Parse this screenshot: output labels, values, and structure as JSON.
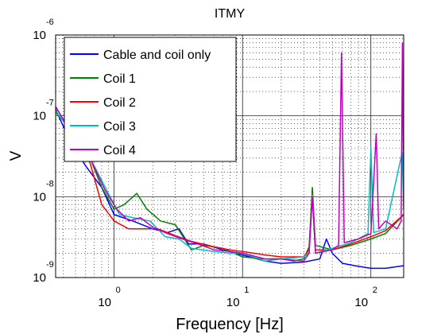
{
  "chart_data": {
    "type": "line",
    "title": "ITMY",
    "xlabel": "Frequency [Hz]",
    "ylabel": "V",
    "xscale": "log",
    "yscale": "log",
    "xlim": [
      0.35,
      180
    ],
    "ylim": [
      1e-09,
      1e-06
    ],
    "grid": true,
    "legend_position": "top-left",
    "x_ticks": [
      {
        "value": 1,
        "base": "10",
        "exp": "0"
      },
      {
        "value": 10,
        "base": "10",
        "exp": "1"
      },
      {
        "value": 100,
        "base": "10",
        "exp": "2"
      }
    ],
    "y_ticks": [
      {
        "value": 1e-09,
        "base": "10",
        "exp": "-9"
      },
      {
        "value": 1e-08,
        "base": "10",
        "exp": "-8"
      },
      {
        "value": 1e-07,
        "base": "10",
        "exp": "-7"
      },
      {
        "value": 1e-06,
        "base": "10",
        "exp": "-6"
      }
    ],
    "series": [
      {
        "name": "Cable and coil only",
        "color": "#0000ff",
        "points": [
          [
            0.35,
            1.2e-07
          ],
          [
            0.45,
            5e-08
          ],
          [
            0.6,
            2.4e-08
          ],
          [
            0.8,
            1.3e-08
          ],
          [
            1.0,
            6e-09
          ],
          [
            1.4,
            5e-09
          ],
          [
            2.0,
            4e-09
          ],
          [
            2.6,
            3.6e-09
          ],
          [
            3.2,
            4e-09
          ],
          [
            3.8,
            2.6e-09
          ],
          [
            5,
            2.6e-09
          ],
          [
            7,
            2.2e-09
          ],
          [
            10,
            1.9e-09
          ],
          [
            15,
            1.6e-09
          ],
          [
            20,
            1.5e-09
          ],
          [
            30,
            1.55e-09
          ],
          [
            40,
            1.7e-09
          ],
          [
            45,
            3e-09
          ],
          [
            50,
            2e-09
          ],
          [
            60,
            1.5e-09
          ],
          [
            75,
            1.4e-09
          ],
          [
            100,
            1.3e-09
          ],
          [
            130,
            1.3e-09
          ],
          [
            180,
            1.4e-09
          ]
        ]
      },
      {
        "name": "Coil 1",
        "color": "#008000",
        "points": [
          [
            0.35,
            1.1e-07
          ],
          [
            0.5,
            6e-08
          ],
          [
            0.65,
            3e-08
          ],
          [
            0.8,
            1.3e-08
          ],
          [
            1.0,
            7e-09
          ],
          [
            1.2,
            8e-09
          ],
          [
            1.5,
            1.1e-08
          ],
          [
            1.8,
            7e-09
          ],
          [
            2.3,
            5e-09
          ],
          [
            3,
            4.5e-09
          ],
          [
            4,
            2.2e-09
          ],
          [
            5,
            2.5e-09
          ],
          [
            7,
            2.3e-09
          ],
          [
            10,
            1.8e-09
          ],
          [
            15,
            1.7e-09
          ],
          [
            20,
            1.7e-09
          ],
          [
            25,
            1.6e-09
          ],
          [
            30,
            1.7e-09
          ],
          [
            33,
            2.4e-09
          ],
          [
            35,
            1.3e-08
          ],
          [
            37,
            2.5e-09
          ],
          [
            50,
            2.2e-09
          ],
          [
            70,
            2.5e-09
          ],
          [
            100,
            3e-09
          ],
          [
            130,
            3.5e-09
          ],
          [
            180,
            6e-09
          ]
        ]
      },
      {
        "name": "Coil 2",
        "color": "#ff0000",
        "points": [
          [
            0.35,
            1.3e-07
          ],
          [
            0.5,
            5e-08
          ],
          [
            0.65,
            2.6e-08
          ],
          [
            0.8,
            8e-09
          ],
          [
            1.0,
            5e-09
          ],
          [
            1.3,
            4e-09
          ],
          [
            1.7,
            4e-09
          ],
          [
            2.2,
            4e-09
          ],
          [
            3,
            3.3e-09
          ],
          [
            4,
            2.8e-09
          ],
          [
            6,
            2.4e-09
          ],
          [
            8,
            2.2e-09
          ],
          [
            10,
            2.1e-09
          ],
          [
            15,
            1.9e-09
          ],
          [
            20,
            1.8e-09
          ],
          [
            30,
            1.8e-09
          ],
          [
            33,
            2.2e-09
          ],
          [
            35,
            1.1e-08
          ],
          [
            37,
            2.2e-09
          ],
          [
            50,
            2.2e-09
          ],
          [
            70,
            2.6e-09
          ],
          [
            100,
            3.2e-09
          ],
          [
            130,
            3.8e-09
          ],
          [
            180,
            6e-09
          ]
        ]
      },
      {
        "name": "Coil 3",
        "color": "#00bfbf",
        "points": [
          [
            0.35,
            1.15e-07
          ],
          [
            0.5,
            5.5e-08
          ],
          [
            0.7,
            2.4e-08
          ],
          [
            0.9,
            1.1e-08
          ],
          [
            1.1,
            6e-09
          ],
          [
            1.4,
            5.5e-09
          ],
          [
            1.9,
            5e-09
          ],
          [
            2.5,
            3.2e-09
          ],
          [
            3.2,
            3e-09
          ],
          [
            4,
            2.3e-09
          ],
          [
            6,
            2.1e-09
          ],
          [
            8,
            2e-09
          ],
          [
            10,
            2e-09
          ],
          [
            15,
            1.6e-09
          ],
          [
            20,
            1.7e-09
          ],
          [
            30,
            1.8e-09
          ],
          [
            33,
            2e-09
          ],
          [
            35,
            1.05e-08
          ],
          [
            37,
            2e-09
          ],
          [
            50,
            2.3e-09
          ],
          [
            70,
            2.7e-09
          ],
          [
            95,
            3.5e-09
          ],
          [
            100,
            4e-08
          ],
          [
            105,
            3.6e-09
          ],
          [
            130,
            4e-09
          ],
          [
            175,
            3.5e-08
          ],
          [
            180,
            8e-09
          ]
        ]
      },
      {
        "name": "Coil 4",
        "color": "#bf00bf",
        "points": [
          [
            0.35,
            1.3e-07
          ],
          [
            0.5,
            5e-08
          ],
          [
            0.65,
            3e-08
          ],
          [
            0.85,
            1.2e-08
          ],
          [
            1.05,
            7e-09
          ],
          [
            1.3,
            5e-09
          ],
          [
            1.6,
            5.5e-09
          ],
          [
            2.0,
            4.2e-09
          ],
          [
            2.6,
            3.5e-09
          ],
          [
            3.4,
            3e-09
          ],
          [
            4.5,
            2.6e-09
          ],
          [
            6,
            2.2e-09
          ],
          [
            8,
            2.1e-09
          ],
          [
            10,
            2e-09
          ],
          [
            15,
            1.7e-09
          ],
          [
            20,
            1.7e-09
          ],
          [
            30,
            1.6e-09
          ],
          [
            33,
            2e-09
          ],
          [
            35,
            1e-08
          ],
          [
            37,
            2e-09
          ],
          [
            50,
            2.2e-09
          ],
          [
            56,
            2.5e-09
          ],
          [
            59,
            6e-07
          ],
          [
            62,
            2.7e-09
          ],
          [
            80,
            3e-09
          ],
          [
            100,
            3.5e-09
          ],
          [
            110,
            6e-08
          ],
          [
            115,
            4e-09
          ],
          [
            130,
            5e-09
          ],
          [
            160,
            4e-09
          ],
          [
            172,
            5e-09
          ],
          [
            176,
            8e-07
          ],
          [
            180,
            7e-09
          ]
        ]
      }
    ]
  }
}
